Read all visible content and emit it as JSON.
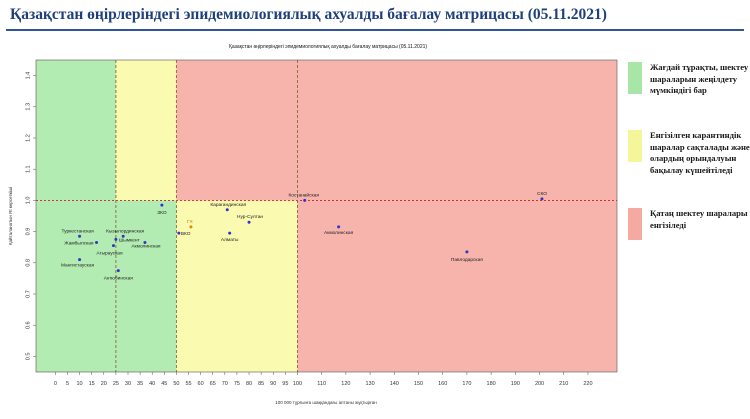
{
  "page": {
    "title": "Қазақстан өңірлеріндегі эпидемиологиялық ахуалды бағалау матрицасы  (05.11.2021)"
  },
  "colors": {
    "green": "#b3ecb3",
    "yellow": "#fafab0",
    "red": "#f6b4ac",
    "title": "#1f3f7a",
    "point": "#3333cc",
    "highlight_point": "#e08a00",
    "threshold_line": "#cc0000"
  },
  "legend": [
    {
      "color": "#a8e6a8",
      "text": "Жағдай тұрақты, шектеу шараларын жеңілдету мүмкіндігі бар"
    },
    {
      "color": "#f5f59a",
      "text": "Енгізілген карантиндік шаралар сақталады және олардың орындалуын бақылау күшейтіледі"
    },
    {
      "color": "#f4a9a1",
      "text": "Қатаң шектеу шаралары енгізіледі"
    }
  ],
  "chart_data": {
    "type": "scatter",
    "title": "Қазақстан өңірлеріндегі эпидемиологиялық ахуалды бағалау матрицасы  (05.11.2021)",
    "xlabel": "100 000 тұрғынға шаққандағы аптаны жұқтырған",
    "ylabel": "Қайталанатын Rt көрсеткіші",
    "xlim": [
      -8,
      232
    ],
    "ylim": [
      0.45,
      1.45
    ],
    "x_ticks": [
      0,
      5,
      10,
      15,
      20,
      25,
      30,
      35,
      40,
      45,
      50,
      55,
      60,
      65,
      70,
      75,
      80,
      85,
      90,
      95,
      100,
      110,
      120,
      130,
      140,
      150,
      160,
      170,
      180,
      190,
      200,
      210,
      220
    ],
    "y_ticks": [
      0.5,
      0.6,
      0.7,
      0.8,
      0.9,
      1.0,
      1.1,
      1.2,
      1.3,
      1.4
    ],
    "zones": [
      {
        "name": "green",
        "x_from": -8,
        "x_to": 50,
        "y_from": 0.45,
        "y_to": 1.0,
        "color": "#b3ecb3"
      },
      {
        "name": "green",
        "x_from": -8,
        "x_to": 25,
        "y_from": 1.0,
        "y_to": 1.45,
        "color": "#b3ecb3"
      },
      {
        "name": "yellow",
        "x_from": 25,
        "x_to": 50,
        "y_from": 1.0,
        "y_to": 1.45,
        "color": "#fafab0"
      },
      {
        "name": "yellow",
        "x_from": 50,
        "x_to": 100,
        "y_from": 0.45,
        "y_to": 1.0,
        "color": "#fafab0"
      },
      {
        "name": "red",
        "x_from": 50,
        "x_to": 232,
        "y_from": 1.0,
        "y_to": 1.45,
        "color": "#f6b4ac"
      },
      {
        "name": "red",
        "x_from": 100,
        "x_to": 232,
        "y_from": 0.45,
        "y_to": 1.0,
        "color": "#f6b4ac"
      }
    ],
    "threshold_lines": [
      {
        "axis": "y",
        "value": 1.0
      },
      {
        "axis": "x",
        "value": 25
      },
      {
        "axis": "x",
        "value": 50
      },
      {
        "axis": "x",
        "value": 100
      }
    ],
    "points": [
      {
        "label": "ЗКО",
        "x": 44,
        "y": 0.985
      },
      {
        "label": "Туркестанская",
        "x": 10,
        "y": 0.885
      },
      {
        "label": "Кызылординская",
        "x": 28,
        "y": 0.885
      },
      {
        "label": "Жамбылская",
        "x": 17,
        "y": 0.865
      },
      {
        "label": "Шымкент",
        "x": 25,
        "y": 0.875
      },
      {
        "label": "Акмолинская",
        "x": 37,
        "y": 0.865
      },
      {
        "label": "Атырауская",
        "x": 24,
        "y": 0.855
      },
      {
        "label": "Мангистауская",
        "x": 10,
        "y": 0.81
      },
      {
        "label": "Актюбинская",
        "x": 26,
        "y": 0.775
      },
      {
        "label": "ВКО",
        "x": 51,
        "y": 0.895
      },
      {
        "label": "ГХ",
        "x": 56,
        "y": 0.915
      },
      {
        "label": "Карагандинская",
        "x": 71,
        "y": 0.97
      },
      {
        "label": "Нур-Султан",
        "x": 80,
        "y": 0.93
      },
      {
        "label": "Алматы",
        "x": 72,
        "y": 0.895
      },
      {
        "label": "Костанайская",
        "x": 103,
        "y": 1.0
      },
      {
        "label": "Акмолинская",
        "x": 117,
        "y": 0.915
      },
      {
        "label": "Павлодарская",
        "x": 170,
        "y": 0.835
      },
      {
        "label": "СКО",
        "x": 201,
        "y": 1.005
      }
    ]
  }
}
